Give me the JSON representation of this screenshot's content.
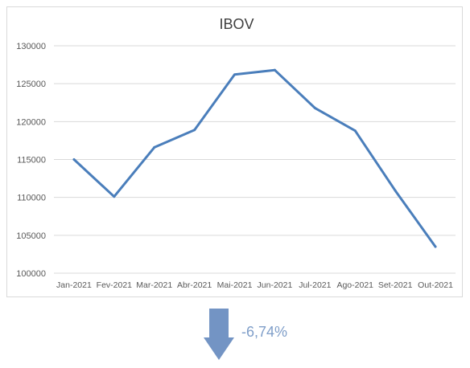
{
  "chart_data": {
    "type": "line",
    "title": "IBOV",
    "categories": [
      "Jan-2021",
      "Fev-2021",
      "Mar-2021",
      "Abr-2021",
      "Mai-2021",
      "Jun-2021",
      "Jul-2021",
      "Ago-2021",
      "Set-2021",
      "Out-2021"
    ],
    "series": [
      {
        "values": [
          115000,
          110100,
          116600,
          118900,
          126200,
          126800,
          121800,
          118800,
          110900,
          103500
        ],
        "color": "#4a7ebb"
      }
    ],
    "yticks": [
      "100000",
      "105000",
      "110000",
      "115000",
      "120000",
      "125000",
      "130000"
    ],
    "ylim": [
      100000,
      130000
    ],
    "grid": true,
    "legend": "none"
  },
  "indicator": {
    "change_text": "-6,74%",
    "icon": "arrow-down-icon",
    "color": "#7f9ec9"
  }
}
